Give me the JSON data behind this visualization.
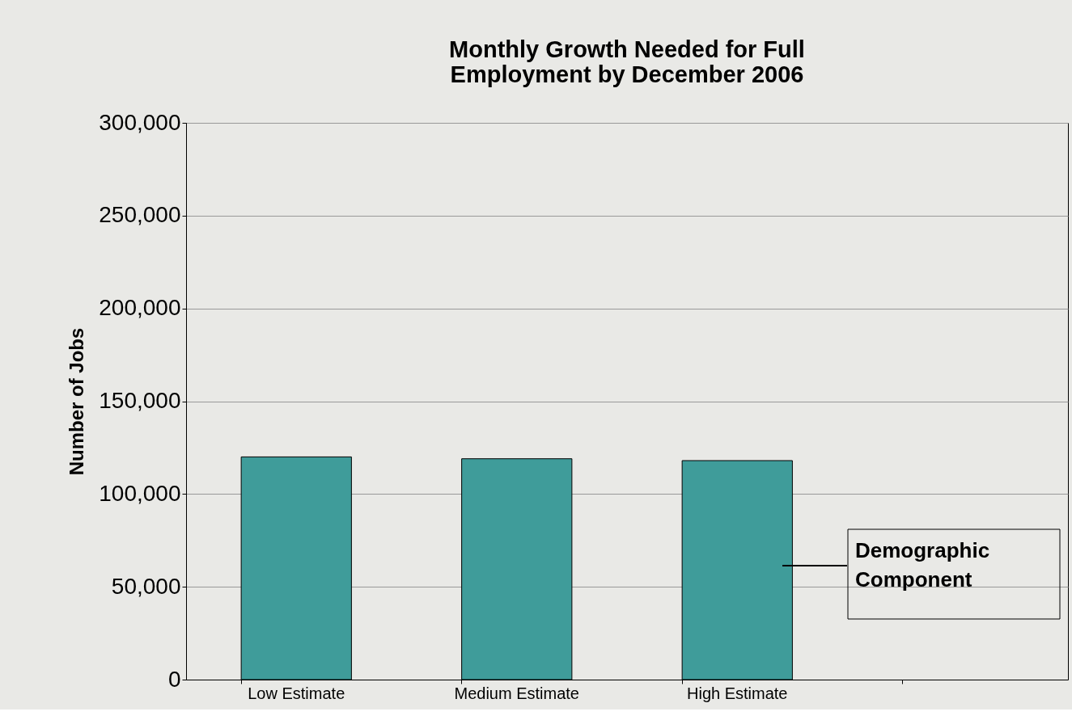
{
  "chart_data": {
    "type": "bar",
    "title": "Monthly Growth Needed for Full Employment by December 2006",
    "ylabel": "Number of Jobs",
    "categories": [
      "Low Estimate",
      "Medium Estimate",
      "High Estimate",
      null
    ],
    "values": [
      120000,
      119000,
      118000,
      null
    ],
    "color": "#3f9c9a",
    "ylim": [
      0,
      300000
    ],
    "yticks": [
      0,
      {
        "value": 50000,
        "label": "50,000"
      },
      {
        "value": 100000,
        "label": "100,000"
      },
      {
        "value": 150000,
        "label": "150,000"
      },
      {
        "value": 200000,
        "label": "200,000"
      },
      {
        "value": 250000,
        "label": "250,000"
      },
      {
        "value": 300000,
        "label": "300,000"
      }
    ],
    "grid": "y",
    "annotations": [
      "Demographic Component"
    ]
  }
}
